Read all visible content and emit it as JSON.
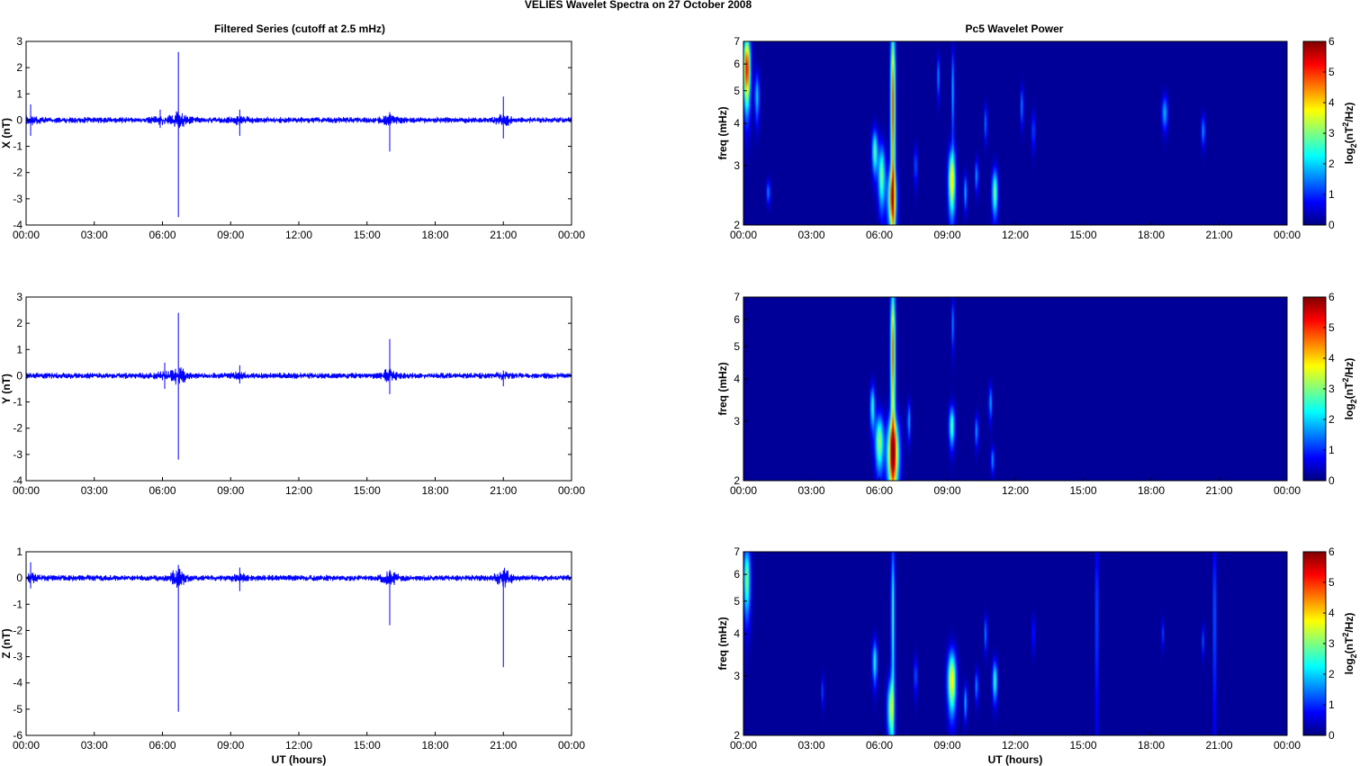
{
  "figure": {
    "title": "VELIES Wavelet Spectra on 27 October   2008",
    "left_title": "Filtered Series (cutoff at 2.5 mHz)",
    "right_title": "Pc5 Wavelet Power",
    "xlabel": "UT (hours)"
  },
  "x_ticks": [
    "00:00",
    "03:00",
    "06:00",
    "09:00",
    "12:00",
    "15:00",
    "18:00",
    "21:00",
    "00:00"
  ],
  "freq_ticks": [
    "2",
    "3",
    "4",
    "5",
    "6",
    "7"
  ],
  "colorbar_ticks": [
    "0",
    "1",
    "2",
    "3",
    "4",
    "5",
    "6"
  ],
  "colors": {
    "series_line": "#0000ff",
    "axes": "#000000",
    "colormap": "jet",
    "background": "#00008f"
  },
  "chart_data": [
    {
      "type": "line",
      "component": "X",
      "ylabel": "X (nT)",
      "xlim": [
        0,
        24
      ],
      "ylim": [
        -4,
        3
      ],
      "yticks": [
        "-4",
        "-3",
        "-2",
        "-1",
        "0",
        "1",
        "2",
        "3"
      ],
      "noise_amplitude_nT": 0.1,
      "spikes": [
        {
          "t": 0.2,
          "max": 0.6,
          "min": -0.6
        },
        {
          "t": 5.9,
          "max": 0.4,
          "min": -0.3
        },
        {
          "t": 6.7,
          "max": 2.6,
          "min": -3.7
        },
        {
          "t": 9.4,
          "max": 0.4,
          "min": -0.6
        },
        {
          "t": 16.0,
          "max": 0.3,
          "min": -1.2
        },
        {
          "t": 21.0,
          "max": 0.9,
          "min": -0.7
        }
      ]
    },
    {
      "type": "line",
      "component": "Y",
      "ylabel": "Y (nT)",
      "xlim": [
        0,
        24
      ],
      "ylim": [
        -4,
        3
      ],
      "yticks": [
        "-4",
        "-3",
        "-2",
        "-1",
        "0",
        "1",
        "2",
        "3"
      ],
      "noise_amplitude_nT": 0.1,
      "spikes": [
        {
          "t": 6.1,
          "max": 0.5,
          "min": -0.5
        },
        {
          "t": 6.7,
          "max": 2.4,
          "min": -3.2
        },
        {
          "t": 9.4,
          "max": 0.4,
          "min": -0.3
        },
        {
          "t": 16.0,
          "max": 1.4,
          "min": -0.7
        },
        {
          "t": 21.0,
          "max": 0.2,
          "min": -0.4
        }
      ]
    },
    {
      "type": "line",
      "component": "Z",
      "ylabel": "Z (nT)",
      "xlim": [
        0,
        24
      ],
      "ylim": [
        -6,
        1
      ],
      "yticks": [
        "-6",
        "-5",
        "-4",
        "-3",
        "-2",
        "-1",
        "0",
        "1"
      ],
      "noise_amplitude_nT": 0.1,
      "spikes": [
        {
          "t": 0.2,
          "max": 0.6,
          "min": -0.4
        },
        {
          "t": 6.7,
          "max": 0.5,
          "min": -5.1
        },
        {
          "t": 9.4,
          "max": 0.4,
          "min": -0.5
        },
        {
          "t": 16.0,
          "max": 0.3,
          "min": -1.8
        },
        {
          "t": 21.0,
          "max": 0.3,
          "min": -3.4
        }
      ]
    },
    {
      "type": "heatmap",
      "component": "X",
      "ylabel": "freq (mHz)",
      "colorbar_label": "log2(nT2/Hz)",
      "xlim": [
        0,
        24
      ],
      "ylim": [
        2,
        7
      ],
      "clim": [
        0,
        6
      ],
      "yscale": "log",
      "blobs": [
        {
          "t": 0.15,
          "f": 5.8,
          "dt": 0.15,
          "df": 1.4,
          "amp": 5.5
        },
        {
          "t": 0.6,
          "f": 4.8,
          "dt": 0.1,
          "df": 0.8,
          "amp": 2.0
        },
        {
          "t": 1.1,
          "f": 2.5,
          "dt": 0.08,
          "df": 0.2,
          "amp": 1.5
        },
        {
          "t": 5.8,
          "f": 3.3,
          "dt": 0.12,
          "df": 0.5,
          "amp": 2.8
        },
        {
          "t": 6.1,
          "f": 2.8,
          "dt": 0.15,
          "df": 0.6,
          "amp": 3.0
        },
        {
          "t": 6.6,
          "f": 4.5,
          "dt": 0.1,
          "df": 3.0,
          "amp": 5.0
        },
        {
          "t": 6.55,
          "f": 2.4,
          "dt": 0.2,
          "df": 0.5,
          "amp": 3.5
        },
        {
          "t": 7.6,
          "f": 3.0,
          "dt": 0.06,
          "df": 0.4,
          "amp": 1.5
        },
        {
          "t": 8.6,
          "f": 5.5,
          "dt": 0.06,
          "df": 0.8,
          "amp": 1.5
        },
        {
          "t": 9.2,
          "f": 2.7,
          "dt": 0.15,
          "df": 0.6,
          "amp": 4.0
        },
        {
          "t": 9.25,
          "f": 5.0,
          "dt": 0.06,
          "df": 1.5,
          "amp": 1.8
        },
        {
          "t": 9.8,
          "f": 2.5,
          "dt": 0.07,
          "df": 0.3,
          "amp": 1.8
        },
        {
          "t": 10.3,
          "f": 2.8,
          "dt": 0.07,
          "df": 0.3,
          "amp": 1.7
        },
        {
          "t": 10.7,
          "f": 4.0,
          "dt": 0.06,
          "df": 0.5,
          "amp": 1.5
        },
        {
          "t": 11.1,
          "f": 2.5,
          "dt": 0.12,
          "df": 0.4,
          "amp": 3.0
        },
        {
          "t": 12.3,
          "f": 4.5,
          "dt": 0.06,
          "df": 0.6,
          "amp": 1.6
        },
        {
          "t": 12.8,
          "f": 3.8,
          "dt": 0.06,
          "df": 0.5,
          "amp": 1.4
        },
        {
          "t": 18.6,
          "f": 4.3,
          "dt": 0.12,
          "df": 0.5,
          "amp": 1.8
        },
        {
          "t": 20.3,
          "f": 3.8,
          "dt": 0.08,
          "df": 0.4,
          "amp": 1.6
        }
      ]
    },
    {
      "type": "heatmap",
      "component": "Y",
      "ylabel": "freq (mHz)",
      "colorbar_label": "log2(nT2/Hz)",
      "xlim": [
        0,
        24
      ],
      "ylim": [
        2,
        7
      ],
      "clim": [
        0,
        6
      ],
      "yscale": "log",
      "blobs": [
        {
          "t": 5.7,
          "f": 3.3,
          "dt": 0.1,
          "df": 0.5,
          "amp": 2.5
        },
        {
          "t": 6.0,
          "f": 2.6,
          "dt": 0.18,
          "df": 0.5,
          "amp": 3.2
        },
        {
          "t": 6.6,
          "f": 2.4,
          "dt": 0.25,
          "df": 0.6,
          "amp": 5.3
        },
        {
          "t": 6.6,
          "f": 4.8,
          "dt": 0.1,
          "df": 2.5,
          "amp": 4.8
        },
        {
          "t": 7.3,
          "f": 3.0,
          "dt": 0.07,
          "df": 0.4,
          "amp": 1.8
        },
        {
          "t": 9.2,
          "f": 2.9,
          "dt": 0.12,
          "df": 0.4,
          "amp": 2.8
        },
        {
          "t": 9.25,
          "f": 5.8,
          "dt": 0.06,
          "df": 1.0,
          "amp": 1.5
        },
        {
          "t": 10.3,
          "f": 2.8,
          "dt": 0.07,
          "df": 0.3,
          "amp": 1.7
        },
        {
          "t": 10.9,
          "f": 3.4,
          "dt": 0.07,
          "df": 0.4,
          "amp": 1.8
        },
        {
          "t": 11.0,
          "f": 2.3,
          "dt": 0.08,
          "df": 0.2,
          "amp": 1.6
        }
      ]
    },
    {
      "type": "heatmap",
      "component": "Z",
      "ylabel": "freq (mHz)",
      "colorbar_label": "log2(nT2/Hz)",
      "xlim": [
        0,
        24
      ],
      "ylim": [
        2,
        7
      ],
      "clim": [
        0,
        6
      ],
      "yscale": "log",
      "blobs": [
        {
          "t": 0.15,
          "f": 5.8,
          "dt": 0.15,
          "df": 1.4,
          "amp": 3.0
        },
        {
          "t": 3.5,
          "f": 2.7,
          "dt": 0.05,
          "df": 0.3,
          "amp": 1.2
        },
        {
          "t": 5.8,
          "f": 3.3,
          "dt": 0.1,
          "df": 0.5,
          "amp": 2.4
        },
        {
          "t": 6.5,
          "f": 2.4,
          "dt": 0.15,
          "df": 0.5,
          "amp": 3.0
        },
        {
          "t": 6.6,
          "f": 4.5,
          "dt": 0.08,
          "df": 2.6,
          "amp": 2.6
        },
        {
          "t": 7.6,
          "f": 3.0,
          "dt": 0.06,
          "df": 0.4,
          "amp": 1.5
        },
        {
          "t": 9.2,
          "f": 2.9,
          "dt": 0.18,
          "df": 0.6,
          "amp": 4.0
        },
        {
          "t": 9.8,
          "f": 2.5,
          "dt": 0.07,
          "df": 0.3,
          "amp": 1.8
        },
        {
          "t": 10.3,
          "f": 2.8,
          "dt": 0.07,
          "df": 0.3,
          "amp": 1.6
        },
        {
          "t": 10.7,
          "f": 4.0,
          "dt": 0.06,
          "df": 0.5,
          "amp": 1.6
        },
        {
          "t": 11.1,
          "f": 2.9,
          "dt": 0.1,
          "df": 0.4,
          "amp": 2.6
        },
        {
          "t": 12.8,
          "f": 4.0,
          "dt": 0.05,
          "df": 0.5,
          "amp": 1.3
        },
        {
          "t": 15.6,
          "f": 4.5,
          "dt": 0.04,
          "df": 3.0,
          "amp": 2.6
        },
        {
          "t": 18.5,
          "f": 4.0,
          "dt": 0.05,
          "df": 0.4,
          "amp": 1.2
        },
        {
          "t": 20.3,
          "f": 3.8,
          "dt": 0.05,
          "df": 0.4,
          "amp": 1.3
        },
        {
          "t": 20.8,
          "f": 4.5,
          "dt": 0.04,
          "df": 3.0,
          "amp": 2.8
        }
      ]
    }
  ]
}
